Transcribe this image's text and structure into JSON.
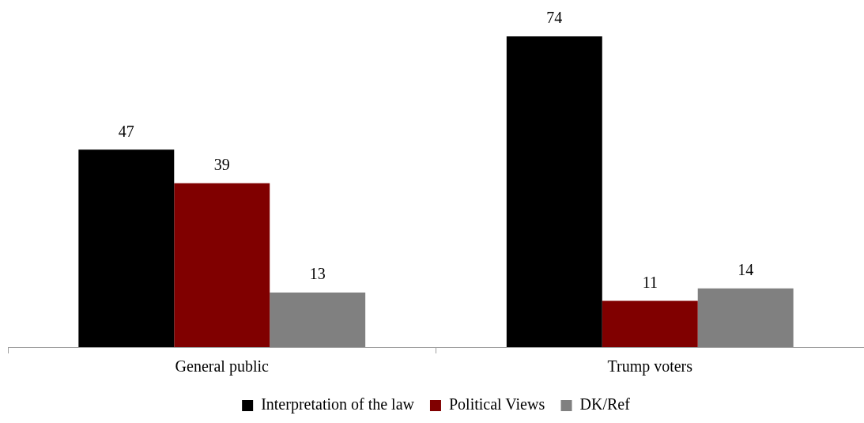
{
  "chart_data": {
    "type": "bar",
    "categories": [
      "General public",
      "Trump voters"
    ],
    "series": [
      {
        "name": "Interpretation of the law",
        "color": "#000000",
        "values": [
          47,
          74
        ]
      },
      {
        "name": "Political Views",
        "color": "#800000",
        "values": [
          39,
          11
        ]
      },
      {
        "name": "DK/Ref",
        "color": "#808080",
        "values": [
          13,
          14
        ]
      }
    ],
    "data_labels": true,
    "legend": "bottom"
  }
}
